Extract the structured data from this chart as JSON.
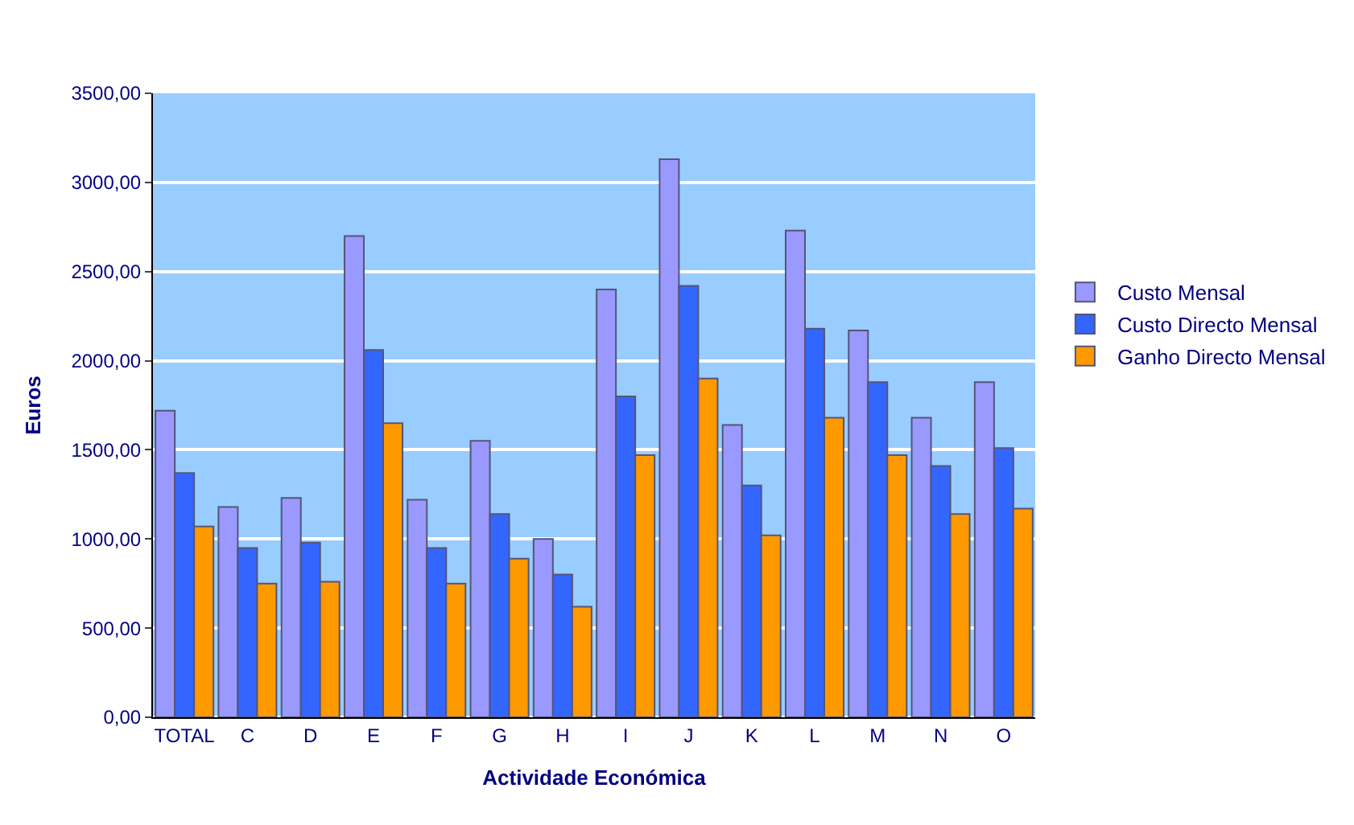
{
  "chart_data": {
    "type": "bar",
    "xlabel": "Actividade Económica",
    "ylabel": "Euros",
    "categories": [
      "TOTAL",
      "C",
      "D",
      "E",
      "F",
      "G",
      "H",
      "I",
      "J",
      "K",
      "L",
      "M",
      "N",
      "O"
    ],
    "series": [
      {
        "name": "Custo Mensal",
        "color": "#9999ff",
        "values": [
          1720,
          1180,
          1230,
          2700,
          1220,
          1550,
          1000,
          2400,
          3130,
          1640,
          2730,
          2170,
          1680,
          1880
        ]
      },
      {
        "name": "Custo Directo Mensal",
        "color": "#3366ff",
        "values": [
          1370,
          950,
          980,
          2060,
          950,
          1140,
          800,
          1800,
          2420,
          1300,
          2180,
          1880,
          1410,
          1510
        ]
      },
      {
        "name": "Ganho Directo Mensal",
        "color": "#ff9900",
        "values": [
          1070,
          750,
          760,
          1650,
          750,
          890,
          620,
          1470,
          1900,
          1020,
          1680,
          1470,
          1140,
          1170
        ]
      }
    ],
    "ylim": [
      0,
      3500
    ],
    "yticks": [
      {
        "value": 0,
        "label": "0,00"
      },
      {
        "value": 500,
        "label": "500,00"
      },
      {
        "value": 1000,
        "label": "1000,00"
      },
      {
        "value": 1500,
        "label": "1500,00"
      },
      {
        "value": 2000,
        "label": "2000,00"
      },
      {
        "value": 2500,
        "label": "2500,00"
      },
      {
        "value": 3000,
        "label": "3000,00"
      },
      {
        "value": 3500,
        "label": "3500,00"
      }
    ],
    "grid": "y",
    "legend": "right"
  }
}
